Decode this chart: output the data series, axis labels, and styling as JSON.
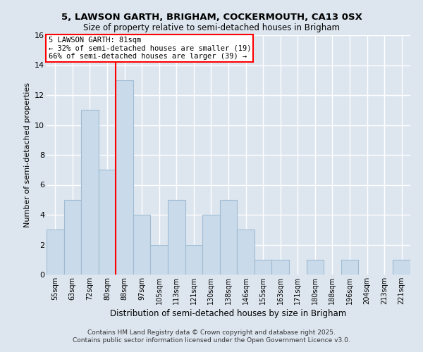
{
  "title1": "5, LAWSON GARTH, BRIGHAM, COCKERMOUTH, CA13 0SX",
  "title2": "Size of property relative to semi-detached houses in Brigham",
  "xlabel": "Distribution of semi-detached houses by size in Brigham",
  "ylabel": "Number of semi-detached properties",
  "categories": [
    "55sqm",
    "63sqm",
    "72sqm",
    "80sqm",
    "88sqm",
    "97sqm",
    "105sqm",
    "113sqm",
    "121sqm",
    "130sqm",
    "138sqm",
    "146sqm",
    "155sqm",
    "163sqm",
    "171sqm",
    "180sqm",
    "188sqm",
    "196sqm",
    "204sqm",
    "213sqm",
    "221sqm"
  ],
  "values": [
    3,
    5,
    11,
    7,
    13,
    4,
    2,
    5,
    2,
    4,
    5,
    3,
    1,
    1,
    0,
    1,
    0,
    1,
    0,
    0,
    1
  ],
  "bar_color": "#c9daea",
  "bar_edge_color": "#a0bcd4",
  "red_line_x": 3.5,
  "annotation_title": "5 LAWSON GARTH: 81sqm",
  "annotation_line1": "← 32% of semi-detached houses are smaller (19)",
  "annotation_line2": "66% of semi-detached houses are larger (39) →",
  "ylim": [
    0,
    16
  ],
  "yticks": [
    0,
    2,
    4,
    6,
    8,
    10,
    12,
    14,
    16
  ],
  "footer1": "Contains HM Land Registry data © Crown copyright and database right 2025.",
  "footer2": "Contains public sector information licensed under the Open Government Licence v3.0.",
  "bg_color": "#dde6ef",
  "plot_bg_color": "#dde6ef",
  "grid_color": "#ffffff"
}
